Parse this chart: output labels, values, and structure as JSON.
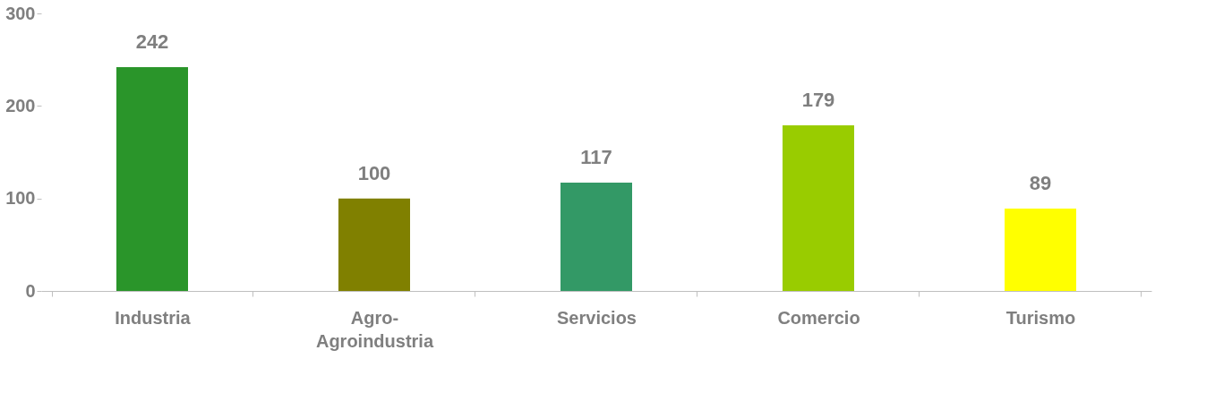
{
  "chart_data": {
    "type": "bar",
    "categories": [
      "Industria",
      "Agro- Agroindustria",
      "Servicios",
      "Comercio",
      "Turismo"
    ],
    "values": [
      242,
      100,
      117,
      179,
      89
    ],
    "colors": [
      "#2a952a",
      "#808000",
      "#339966",
      "#99cc00",
      "#ffff00"
    ],
    "ylim": [
      0,
      300
    ],
    "yticks": [
      0,
      100,
      200,
      300
    ],
    "grid": false,
    "data_labels": true
  }
}
